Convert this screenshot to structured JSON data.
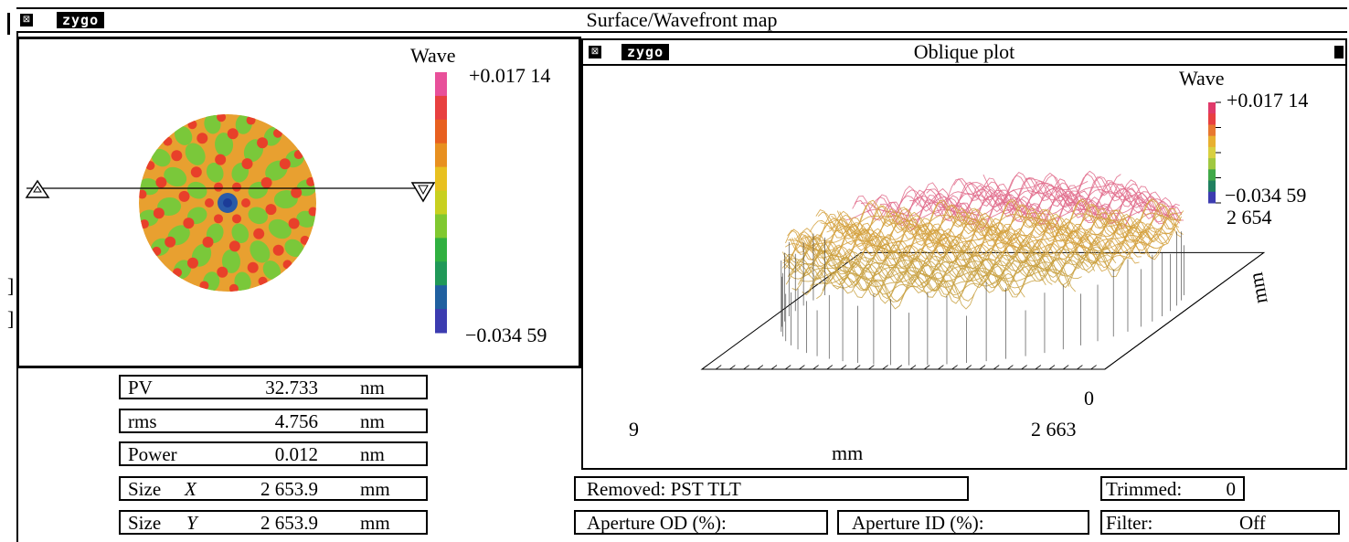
{
  "main_window": {
    "title": "Surface/Wavefront map",
    "logo": "zygo"
  },
  "surface_panel": {
    "scale_title": "Wave",
    "scale_max": "+0.017 14",
    "scale_min": "−0.034 59",
    "scale_colors": [
      "#e8509a",
      "#e84040",
      "#e86020",
      "#e89020",
      "#e8c020",
      "#c8d020",
      "#80c830",
      "#30b040",
      "#209858",
      "#2060a0",
      "#3c3cb0"
    ]
  },
  "oblique_window": {
    "title": "Oblique plot",
    "logo": "zygo",
    "scale_title": "Wave",
    "scale_max": "+0.017 14",
    "scale_min": "−0.034 59",
    "scale_colors": [
      "#e03a6a",
      "#e84040",
      "#e87830",
      "#e8b030",
      "#d8d040",
      "#a0c840",
      "#40a848",
      "#208060",
      "#3c3cb0"
    ],
    "axis_x_start": "9",
    "axis_x_end": "2 663",
    "axis_x_label": "mm",
    "axis_y_start": "0",
    "axis_y_end": "2 654",
    "axis_y_label": "mm"
  },
  "stats": [
    {
      "label": "PV",
      "value": "32.733",
      "unit": "nm"
    },
    {
      "label": "rms",
      "value": "4.756",
      "unit": "nm"
    },
    {
      "label": "Power",
      "value": "0.012",
      "unit": "nm"
    },
    {
      "label": "Size",
      "var": "X",
      "value": "2 653.9",
      "unit": "mm"
    },
    {
      "label": "Size",
      "var": "Y",
      "value": "2 653.9",
      "unit": "mm"
    }
  ],
  "removed": "Removed: PST TLT",
  "trimmed_label": "Trimmed:",
  "trimmed_value": "0",
  "aperture_od": "Aperture OD (%):",
  "aperture_id": "Aperture ID (%):",
  "filter_label": "Filter:",
  "filter_value": "Off"
}
